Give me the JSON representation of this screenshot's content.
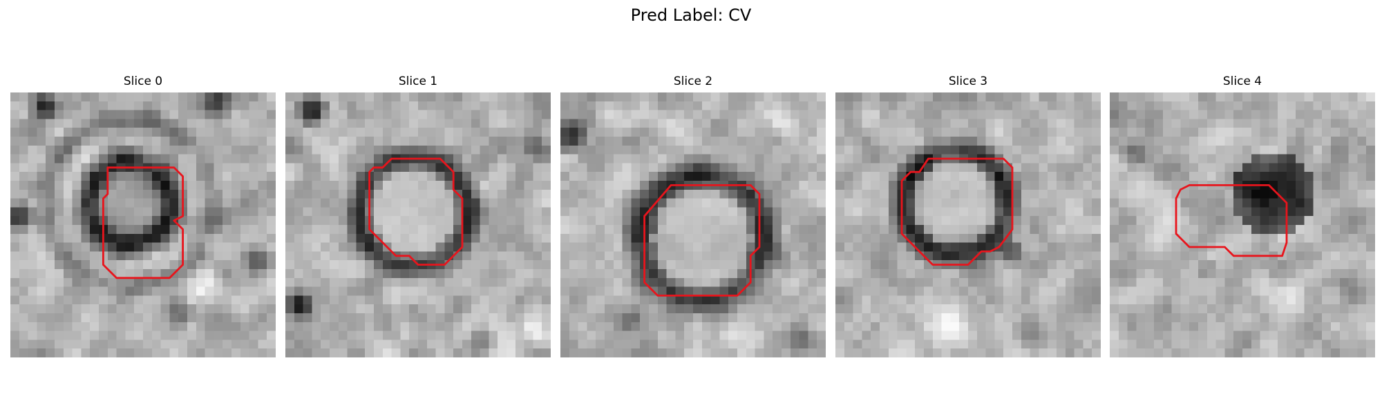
{
  "suptitle": "Pred Label: CV",
  "contour_color": "#e8141c",
  "colormap": "grayscale",
  "panels": [
    {
      "title": "Slice 0",
      "seed": 11,
      "structure": {
        "type": "ring",
        "center": [
          13.5,
          12.5
        ],
        "radius": 4.6,
        "width": 2.2,
        "ring_darkness": 0.62,
        "inner_tone": 0.55
      },
      "outer_ring": {
        "center": [
          13.5,
          12.5
        ],
        "radius": 9.5,
        "width": 1.8,
        "darkness": 0.25
      },
      "dark_spots": [
        [
          4,
          1.5,
          2.2,
          0.55
        ],
        [
          23,
          1,
          2.5,
          0.5
        ],
        [
          1,
          14,
          2.2,
          0.55
        ],
        [
          19,
          25,
          2,
          0.45
        ],
        [
          28,
          19,
          2,
          0.4
        ]
      ],
      "light_spots": [
        [
          9,
          7,
          2.5,
          0.25
        ],
        [
          22,
          22,
          3,
          0.25
        ]
      ],
      "contour": [
        [
          11,
          8.5
        ],
        [
          18.5,
          8.5
        ],
        [
          19.5,
          9.5
        ],
        [
          19.5,
          14
        ],
        [
          18.5,
          14.5
        ],
        [
          19.5,
          15.5
        ],
        [
          19.5,
          19.5
        ],
        [
          18,
          21
        ],
        [
          12,
          21
        ],
        [
          10.5,
          19.5
        ],
        [
          10.5,
          12
        ],
        [
          11,
          11.5
        ]
      ]
    },
    {
      "title": "Slice 1",
      "seed": 23,
      "structure": {
        "type": "ring",
        "center": [
          14.5,
          13.5
        ],
        "radius": 6.2,
        "width": 2.0,
        "ring_darkness": 0.5,
        "inner_tone": 0.82
      },
      "outer_ring": null,
      "dark_spots": [
        [
          3,
          2,
          2.2,
          0.65
        ],
        [
          1.5,
          24,
          2,
          0.7
        ],
        [
          22,
          28,
          2,
          0.35
        ],
        [
          28,
          6,
          2,
          0.3
        ]
      ],
      "light_spots": [
        [
          28,
          27,
          2,
          0.3
        ]
      ],
      "contour": [
        [
          9.5,
          9
        ],
        [
          10,
          8.5
        ],
        [
          11,
          8.5
        ],
        [
          12,
          7.5
        ],
        [
          17.5,
          7.5
        ],
        [
          18.5,
          8.5
        ],
        [
          19,
          9
        ],
        [
          19,
          11
        ],
        [
          20,
          12
        ],
        [
          20,
          17.5
        ],
        [
          18,
          19.5
        ],
        [
          15,
          19.5
        ],
        [
          14,
          18.5
        ],
        [
          12.5,
          18.5
        ],
        [
          11.5,
          17.5
        ],
        [
          10,
          16
        ],
        [
          9.5,
          15.5
        ]
      ]
    },
    {
      "title": "Slice 2",
      "seed": 37,
      "structure": {
        "type": "ring",
        "center": [
          16,
          16.5
        ],
        "radius": 7.0,
        "width": 2.4,
        "ring_darkness": 0.55,
        "inner_tone": 0.8
      },
      "outer_ring": null,
      "dark_spots": [
        [
          1,
          5,
          2.5,
          0.7
        ],
        [
          8,
          26,
          2,
          0.4
        ],
        [
          27,
          28,
          2,
          0.35
        ]
      ],
      "light_spots": [
        [
          6,
          3,
          2.5,
          0.25
        ],
        [
          24,
          3,
          3,
          0.2
        ]
      ],
      "contour": [
        [
          9.5,
          14
        ],
        [
          12.5,
          10.5
        ],
        [
          21.5,
          10.5
        ],
        [
          22.5,
          11.5
        ],
        [
          22.5,
          17.5
        ],
        [
          21.5,
          18.5
        ],
        [
          21.5,
          21.5
        ],
        [
          20,
          23
        ],
        [
          11,
          23
        ],
        [
          9.5,
          21.5
        ]
      ]
    },
    {
      "title": "Slice 3",
      "seed": 53,
      "structure": {
        "type": "ring",
        "center": [
          13.5,
          12.5
        ],
        "radius": 5.8,
        "width": 2.2,
        "ring_darkness": 0.55,
        "inner_tone": 0.82
      },
      "outer_ring": null,
      "dark_spots": [
        [
          20,
          18,
          1.8,
          0.4
        ]
      ],
      "light_spots": [
        [
          13,
          26,
          4,
          0.25
        ],
        [
          4,
          3,
          2.5,
          0.2
        ]
      ],
      "contour": [
        [
          7.5,
          10
        ],
        [
          8.5,
          9
        ],
        [
          9.5,
          9
        ],
        [
          10.5,
          7.5
        ],
        [
          19,
          7.5
        ],
        [
          20,
          8.5
        ],
        [
          20,
          15.5
        ],
        [
          18.5,
          17.5
        ],
        [
          17.5,
          18
        ],
        [
          16.5,
          18
        ],
        [
          15,
          19.5
        ],
        [
          11,
          19.5
        ],
        [
          10.5,
          19
        ],
        [
          7.5,
          16
        ]
      ]
    },
    {
      "title": "Slice 4",
      "seed": 71,
      "structure": {
        "type": "blob",
        "center": [
          18.5,
          11.5
        ],
        "radius": 4.8,
        "width": 0,
        "ring_darkness": 0.72,
        "inner_tone": 0.2
      },
      "outer_ring": null,
      "dark_spots": [
        [
          3,
          7,
          2,
          0.35
        ],
        [
          11,
          20,
          1.6,
          0.25
        ],
        [
          26,
          6,
          1.6,
          0.2
        ]
      ],
      "light_spots": [
        [
          20,
          24,
          3,
          0.25
        ]
      ],
      "contour": [
        [
          8,
          11
        ],
        [
          9,
          10.5
        ],
        [
          18,
          10.5
        ],
        [
          20,
          12.5
        ],
        [
          20,
          17
        ],
        [
          19.5,
          18.5
        ],
        [
          14,
          18.5
        ],
        [
          13,
          17.5
        ],
        [
          9,
          17.5
        ],
        [
          7.5,
          16
        ],
        [
          7.5,
          12
        ]
      ]
    }
  ]
}
